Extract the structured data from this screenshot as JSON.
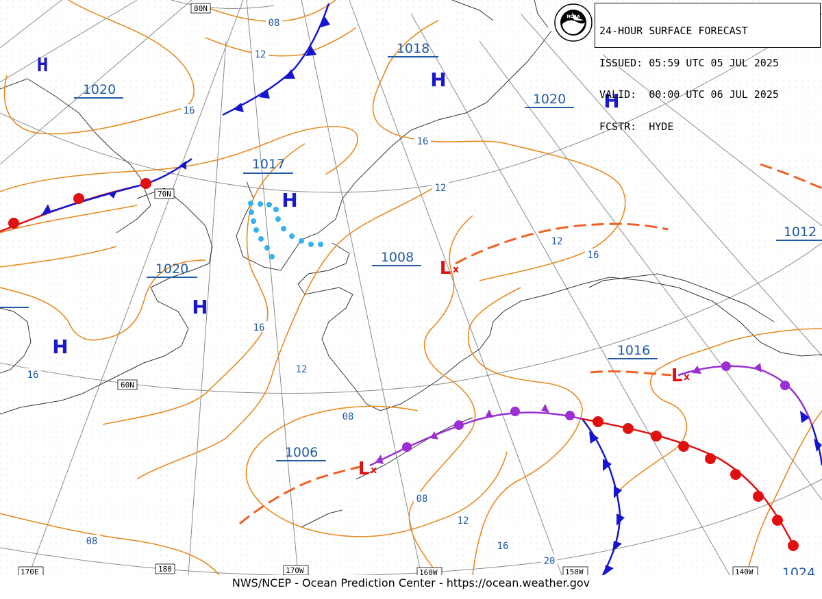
{
  "header": {
    "title": "24-HOUR SURFACE FORECAST",
    "issued_label": "ISSUED:",
    "issued_value": "05:59 UTC 05 JUL 2025",
    "valid_label": "VALID:",
    "valid_value": "00:00 UTC 06 JUL 2025",
    "forecaster_label": "FCSTR:",
    "forecaster_value": "HYDE"
  },
  "logo": {
    "text": "NOAA"
  },
  "footer": {
    "credit": "NWS/NCEP - Ocean Prediction Center - https://ocean.weather.gov"
  },
  "colors": {
    "isobar": "#e8891e",
    "isobar_label": "#1f5aa6",
    "pressure_label": "#1f5aa6",
    "high": "#1a1acc",
    "low": "#e01010",
    "cold_front": "#1515d0",
    "warm_front": "#e01010",
    "occluded_front": "#9a2fd4",
    "trough": "#f06020",
    "ridge": "#33b3ee",
    "grid": "#909090"
  },
  "grid_labels": {
    "lat_80": "80N",
    "lat_70": "70N",
    "lat_60": "60N",
    "lon_170e": "170E",
    "lon_180": "180",
    "lon_170w": "170W",
    "lon_160w": "160W",
    "lon_150w": "150W",
    "lon_140w": "140W"
  },
  "pressure_centers": [
    {
      "type": "H",
      "label": ""
    },
    {
      "type": "H",
      "label": "1020"
    },
    {
      "type": "H",
      "label": "1018"
    },
    {
      "type": "H",
      "label": "1020"
    },
    {
      "type": "H",
      "label": "1017"
    },
    {
      "type": "H",
      "label": "1020"
    },
    {
      "type": "H",
      "label": ""
    },
    {
      "type": "L",
      "label": "1008"
    },
    {
      "type": "L",
      "label": "1016"
    },
    {
      "type": "L",
      "label": "1006"
    }
  ],
  "edge_pressure_labels": [
    "1012",
    "1024"
  ],
  "isobar_labels": [
    "08",
    "12",
    "16",
    "16",
    "12",
    "12",
    "16",
    "16",
    "12",
    "16",
    "08",
    "08",
    "12",
    "16",
    "20",
    "08"
  ]
}
